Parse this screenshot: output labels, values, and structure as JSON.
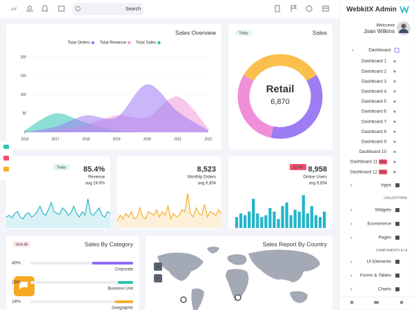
{
  "topbar": {
    "search_placeholder": "Search"
  },
  "sidebar": {
    "brand": "WebkitX Admin",
    "welcome": "Welcome",
    "user": "Joan Wilkins",
    "dashboard": "Dashboard",
    "dashboards": [
      {
        "label": "Dashboard 1"
      },
      {
        "label": "Dashboard 2"
      },
      {
        "label": "Dashboard 3"
      },
      {
        "label": "Dashboard 4"
      },
      {
        "label": "Dashboard 5"
      },
      {
        "label": "Dashboard 6"
      },
      {
        "label": "Dashboard 7"
      },
      {
        "label": "Dashboard 8"
      },
      {
        "label": "Dashboard 9"
      },
      {
        "label": "Dashboard 10"
      },
      {
        "label": "Dashboard 11",
        "badge": "New"
      },
      {
        "label": "Dashboard 12",
        "badge": "New"
      }
    ],
    "menu": [
      {
        "label": "Apps"
      },
      {
        "section": "COLLECTIONS"
      },
      {
        "label": "Widgets"
      },
      {
        "label": "Ecommerce"
      },
      {
        "label": "Pages"
      },
      {
        "section": "COMPONENTS & UI"
      },
      {
        "label": "UI Elements"
      },
      {
        "label": "Forms & Tables"
      },
      {
        "label": "Charts"
      }
    ]
  },
  "sales_overview": {
    "type": "area",
    "title": "Sales Overview",
    "x": [
      2016,
      2017,
      2018,
      2019,
      2020,
      2021,
      2022
    ],
    "xlim": [
      2016,
      2022
    ],
    "xticks": [
      2016,
      2017,
      2018,
      2019,
      2020,
      2021,
      2022
    ],
    "ylim": [
      0,
      200
    ],
    "yticks": [
      0,
      50,
      100,
      150,
      200
    ],
    "grid": true,
    "series": [
      {
        "name": "Total Orders",
        "color": "#9d7cf4",
        "values": [
          0,
          15,
          45,
          40,
          128,
          55,
          5
        ]
      },
      {
        "name": "Total Revenue",
        "color": "#f29ad8",
        "values": [
          0,
          5,
          20,
          45,
          40,
          95,
          10
        ]
      },
      {
        "name": "Total Sales",
        "color": "#2fc4b2",
        "values": [
          5,
          50,
          25,
          5,
          0,
          0,
          0
        ]
      }
    ]
  },
  "sales": {
    "type": "donut",
    "title": "Sales",
    "badge": "Today",
    "center_label": "Retail",
    "center_value": "6,870",
    "values": [
      33,
      37,
      30
    ],
    "colors": [
      "#fbbf4e",
      "#9d7cf4",
      "#f08fd9"
    ]
  },
  "stats": [
    {
      "value": "85.4%",
      "label": "Revenue",
      "avg": "avg 24.6%",
      "badge": "Today",
      "badge_color": "#2fc4b2",
      "spark": {
        "type": "area",
        "color": "#2cb7c9",
        "ylim": [
          0,
          100
        ],
        "values": [
          30,
          35,
          28,
          40,
          45,
          30,
          25,
          38,
          42,
          30,
          35,
          45,
          60,
          40,
          35,
          50,
          70,
          45,
          40,
          38,
          55,
          48,
          35,
          42,
          60,
          40,
          30,
          45,
          35,
          80,
          40,
          35,
          45,
          55,
          35,
          30,
          45,
          40
        ]
      }
    },
    {
      "value": "8,523",
      "label": "Monthly Orders",
      "avg": "avg 6,854",
      "spark": {
        "type": "area",
        "color": "#f6ae2d",
        "ylim": [
          0,
          100
        ],
        "values": [
          20,
          35,
          25,
          40,
          30,
          45,
          25,
          30,
          55,
          30,
          25,
          45,
          40,
          35,
          50,
          30,
          45,
          35,
          60,
          25,
          40,
          30,
          35,
          50,
          45,
          95,
          40,
          30,
          55,
          40,
          35,
          65,
          30,
          45,
          40,
          35,
          50,
          40
        ]
      }
    },
    {
      "value": "8,958",
      "label": "Online Users",
      "avg": "avg 6,854",
      "badge": "22.6%",
      "badge_color": "#f0506e",
      "spark": {
        "type": "bar",
        "color": "#22b5c8",
        "ylim": [
          0,
          100
        ],
        "values": [
          30,
          40,
          35,
          45,
          80,
          40,
          30,
          35,
          55,
          45,
          25,
          60,
          70,
          35,
          50,
          45,
          90,
          40,
          60,
          35,
          30,
          45
        ]
      }
    }
  ],
  "sales_by_category": {
    "title": "Sales By Category",
    "badge": "View All",
    "xlim": [
      0,
      100
    ],
    "rows": [
      {
        "value": 40,
        "value_label": "40%",
        "label": "Corporate",
        "color": "#8d6cf5"
      },
      {
        "value": 15,
        "value_label": "15%",
        "label": "Business Unit",
        "color": "#2fc4b2"
      },
      {
        "value": 18,
        "value_label": "18%",
        "label": "Geographic",
        "color": "#f6ae2d"
      }
    ]
  },
  "sales_report": {
    "title": "Sales Report By Country",
    "zoom_in": "+",
    "zoom_out": "−"
  }
}
